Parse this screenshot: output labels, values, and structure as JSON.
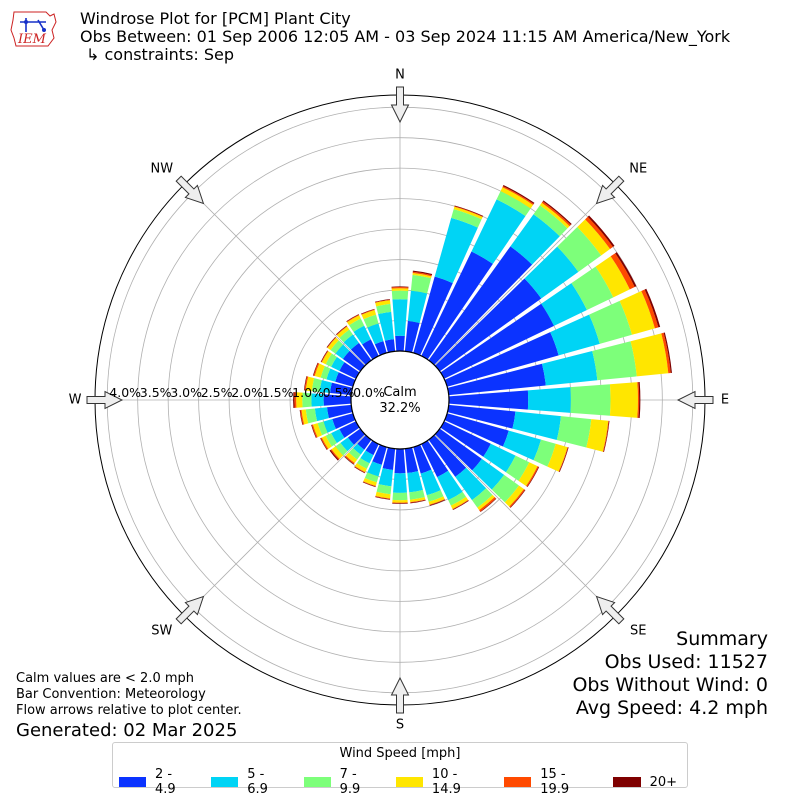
{
  "header": {
    "title": "Windrose Plot for [PCM] Plant City",
    "obs_between": "Obs Between: 01 Sep 2006 12:05 AM - 03 Sep 2024 11:15 AM America/New_York",
    "constraints": "↳ constraints: Sep"
  },
  "logo": {
    "text": "IEM"
  },
  "summary": {
    "title": "Summary",
    "obs_used": "Obs Used: 11527",
    "obs_without_wind": "Obs Without Wind: 0",
    "avg_speed": "Avg Speed: 4.2 mph"
  },
  "notes": {
    "calm": "Calm values are < 2.0 mph",
    "convention": "Bar Convention: Meteorology",
    "arrows": "Flow arrows relative to plot center.",
    "generated": "Generated: 02 Mar 2025"
  },
  "chart_data": {
    "type": "windrose",
    "calm_label": "Calm",
    "calm_percent": "32.2%",
    "calm_value": 32.2,
    "radial_unit": "%",
    "radial_ticks": [
      "0.0%",
      "0.5%",
      "1.0%",
      "1.5%",
      "2.0%",
      "2.5%",
      "3.0%",
      "3.5%",
      "4.0%"
    ],
    "radial_max": 4.2,
    "compass_labels": [
      "N",
      "NE",
      "E",
      "SE",
      "S",
      "SW",
      "W",
      "NW"
    ],
    "legend_title": "Wind Speed [mph]",
    "bins": [
      {
        "label": "2 - 4.9",
        "color": "#0b33ff"
      },
      {
        "label": "5 - 6.9",
        "color": "#00d4f5"
      },
      {
        "label": "7 - 9.9",
        "color": "#7dff7a"
      },
      {
        "label": "10 - 14.9",
        "color": "#ffe600"
      },
      {
        "label": "15 - 19.9",
        "color": "#ff4a00"
      },
      {
        "label": "20+",
        "color": "#7f0000"
      }
    ],
    "directions_deg": [
      0,
      10,
      20,
      30,
      40,
      50,
      60,
      70,
      80,
      90,
      100,
      110,
      120,
      130,
      140,
      150,
      160,
      170,
      180,
      190,
      200,
      210,
      220,
      230,
      240,
      250,
      260,
      270,
      280,
      290,
      300,
      310,
      320,
      330,
      340,
      350
    ],
    "cumulative_percent": [
      [
        0.25,
        0.85,
        0.99,
        1.03,
        1.05,
        1.06
      ],
      [
        0.5,
        1.0,
        1.26,
        1.29,
        1.31,
        1.33
      ],
      [
        1.3,
        2.3,
        2.45,
        2.49,
        2.5,
        2.51
      ],
      [
        1.9,
        2.85,
        3.0,
        3.07,
        3.09,
        3.11
      ],
      [
        2.3,
        2.95,
        3.13,
        3.18,
        3.21,
        3.23
      ],
      [
        2.05,
        2.8,
        3.26,
        3.44,
        3.5,
        3.53
      ],
      [
        2.0,
        2.6,
        3.08,
        3.38,
        3.47,
        3.5
      ],
      [
        1.9,
        2.6,
        3.15,
        3.54,
        3.6,
        3.63
      ],
      [
        1.6,
        2.45,
        3.1,
        3.62,
        3.66,
        3.68
      ],
      [
        1.3,
        2.0,
        2.65,
        3.1,
        3.12,
        3.14
      ],
      [
        1.1,
        1.85,
        2.35,
        2.63,
        2.64,
        2.65
      ],
      [
        1.05,
        1.6,
        1.85,
        2.05,
        2.06,
        2.07
      ],
      [
        0.85,
        1.3,
        1.55,
        1.7,
        1.72,
        1.73
      ],
      [
        0.85,
        1.3,
        1.6,
        1.7,
        1.72,
        1.73
      ],
      [
        0.75,
        1.22,
        1.37,
        1.42,
        1.45,
        1.46
      ],
      [
        0.6,
        1.02,
        1.12,
        1.18,
        1.19,
        1.2
      ],
      [
        0.45,
        0.82,
        0.93,
        0.98,
        0.99,
        1.0
      ],
      [
        0.4,
        0.72,
        0.84,
        0.88,
        0.89,
        0.9
      ],
      [
        0.4,
        0.72,
        0.84,
        0.88,
        0.89,
        0.9
      ],
      [
        0.35,
        0.62,
        0.75,
        0.82,
        0.83,
        0.84
      ],
      [
        0.3,
        0.5,
        0.6,
        0.66,
        0.67,
        0.68
      ],
      [
        0.2,
        0.35,
        0.45,
        0.51,
        0.52,
        0.53
      ],
      [
        0.2,
        0.3,
        0.4,
        0.47,
        0.49,
        0.5
      ],
      [
        0.25,
        0.4,
        0.5,
        0.58,
        0.6,
        0.62
      ],
      [
        0.3,
        0.45,
        0.55,
        0.62,
        0.64,
        0.65
      ],
      [
        0.35,
        0.5,
        0.6,
        0.68,
        0.7,
        0.71
      ],
      [
        0.4,
        0.6,
        0.75,
        0.82,
        0.84,
        0.85
      ],
      [
        0.45,
        0.65,
        0.8,
        0.9,
        0.93,
        0.95
      ],
      [
        0.35,
        0.52,
        0.65,
        0.75,
        0.77,
        0.78
      ],
      [
        0.3,
        0.45,
        0.55,
        0.65,
        0.67,
        0.68
      ],
      [
        0.3,
        0.45,
        0.55,
        0.62,
        0.63,
        0.64
      ],
      [
        0.35,
        0.5,
        0.6,
        0.66,
        0.67,
        0.68
      ],
      [
        0.35,
        0.52,
        0.62,
        0.68,
        0.69,
        0.7
      ],
      [
        0.3,
        0.55,
        0.68,
        0.74,
        0.75,
        0.76
      ],
      [
        0.2,
        0.5,
        0.65,
        0.73,
        0.74,
        0.75
      ],
      [
        0.2,
        0.65,
        0.78,
        0.84,
        0.85,
        0.86
      ]
    ]
  }
}
